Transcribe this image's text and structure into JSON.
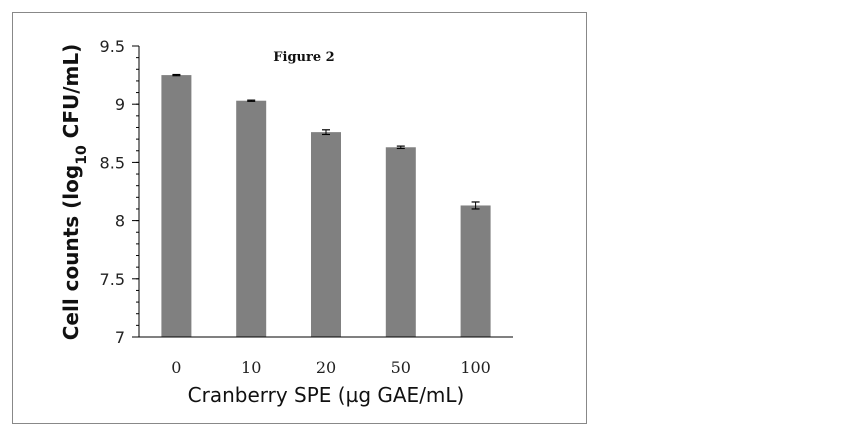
{
  "chart_data": {
    "type": "bar",
    "title": "Figure 2",
    "xlabel": "Cranberry SPE (µg GAE/mL)",
    "ylabel": {
      "prefix": "Cell counts (log",
      "subscript": "10",
      "suffix": " CFU/mL)"
    },
    "categories": [
      "0",
      "10",
      "20",
      "50",
      "100"
    ],
    "values": [
      9.25,
      9.03,
      8.76,
      8.63,
      8.13
    ],
    "errors": [
      0.005,
      0.005,
      0.02,
      0.01,
      0.03
    ],
    "ylim": [
      7,
      9.5
    ],
    "yticks": [
      "7",
      "7.5",
      "8",
      "8.5",
      "9",
      "9.5"
    ],
    "ytick_values": [
      7,
      7.5,
      8,
      8.5,
      9,
      9.5
    ],
    "minor_tick_step": 0.1,
    "grid": false,
    "bar_color": "#808080"
  }
}
